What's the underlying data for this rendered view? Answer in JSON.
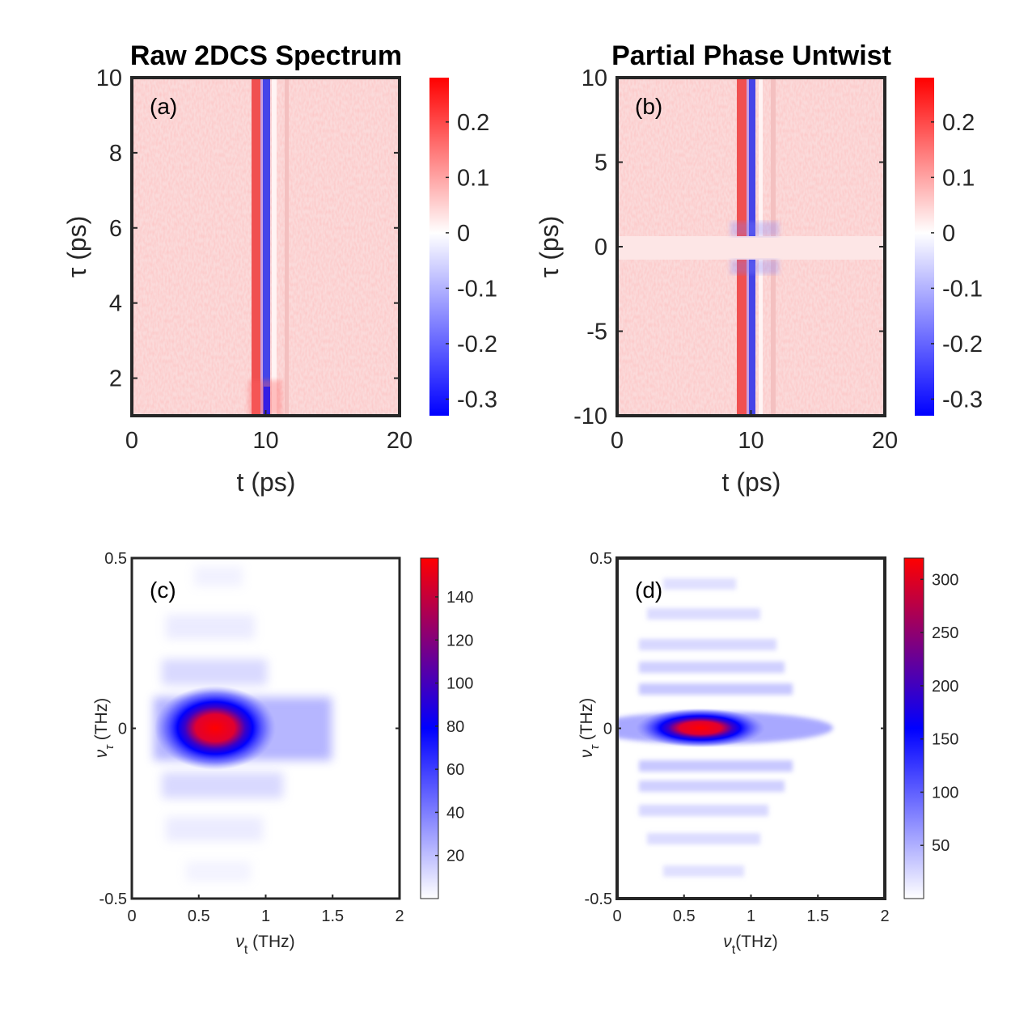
{
  "chart_data": [
    {
      "id": "a",
      "type": "heatmap",
      "title": "Raw 2DCS Spectrum",
      "panel_label": "(a)",
      "xlabel": "t (ps)",
      "ylabel": "τ (ps)",
      "xlim": [
        0,
        20
      ],
      "ylim": [
        1,
        10
      ],
      "xticks": [
        0,
        10,
        20
      ],
      "yticks": [
        2,
        4,
        6,
        8,
        10
      ],
      "colorbar": {
        "colormap": "blue-white-red",
        "range": [
          -0.33,
          0.28
        ],
        "ticks": [
          0.2,
          0.1,
          0,
          -0.1,
          -0.2,
          -0.3
        ]
      },
      "features": [
        {
          "kind": "vertical-stripe",
          "center_x": 9.5,
          "value": 0.2
        },
        {
          "kind": "vertical-stripe",
          "center_x": 10.2,
          "value": -0.3
        },
        {
          "kind": "vertical-stripe",
          "center_x": 11.8,
          "value": 0.05
        }
      ]
    },
    {
      "id": "b",
      "type": "heatmap",
      "title": "Partial Phase Untwist",
      "panel_label": "(b)",
      "xlabel": "t (ps)",
      "ylabel": "τ (ps)",
      "xlim": [
        0,
        20
      ],
      "ylim": [
        -10,
        10
      ],
      "xticks": [
        0,
        10,
        20
      ],
      "yticks": [
        -10,
        -5,
        0,
        5,
        10
      ],
      "colorbar": {
        "colormap": "blue-white-red",
        "range": [
          -0.33,
          0.28
        ],
        "ticks": [
          0.2,
          0.1,
          0,
          -0.1,
          -0.2,
          -0.3
        ]
      },
      "features": [
        {
          "kind": "vertical-stripe",
          "center_x": 9.5,
          "value": 0.2
        },
        {
          "kind": "vertical-stripe",
          "center_x": 10,
          "value": -0.3
        },
        {
          "kind": "vertical-stripe",
          "center_x": 11.5,
          "value": 0.05
        },
        {
          "kind": "horizontal-gap",
          "center_y": 0,
          "half_width": 0.7,
          "value": 0.03
        }
      ]
    },
    {
      "id": "c",
      "type": "heatmap",
      "panel_label": "(c)",
      "xlabel": "νt (THz)",
      "ylabel": "ντ (THz)",
      "xlim": [
        0,
        2
      ],
      "ylim": [
        -0.5,
        0.5
      ],
      "xticks": [
        0,
        0.5,
        1,
        1.5,
        2
      ],
      "yticks": [
        -0.5,
        0,
        0.5
      ],
      "colorbar": {
        "colormap": "white-blue-red",
        "range": [
          0,
          158
        ],
        "ticks": [
          20,
          40,
          60,
          80,
          100,
          120,
          140
        ]
      },
      "peak": {
        "nu_t": 0.62,
        "nu_tau": 0,
        "value": 158
      }
    },
    {
      "id": "d",
      "type": "heatmap",
      "panel_label": "(d)",
      "xlabel": "νt(THz)",
      "ylabel": "ντ (THz)",
      "xlim": [
        0,
        2
      ],
      "ylim": [
        -0.5,
        0.5
      ],
      "xticks": [
        0,
        0.5,
        1,
        1.5,
        2
      ],
      "yticks": [
        -0.5,
        0,
        0.5
      ],
      "colorbar": {
        "colormap": "white-blue-red",
        "range": [
          0,
          320
        ],
        "ticks": [
          50,
          100,
          150,
          200,
          250,
          300
        ]
      },
      "peak": {
        "nu_t": 0.62,
        "nu_tau": 0,
        "value": 320
      }
    }
  ]
}
